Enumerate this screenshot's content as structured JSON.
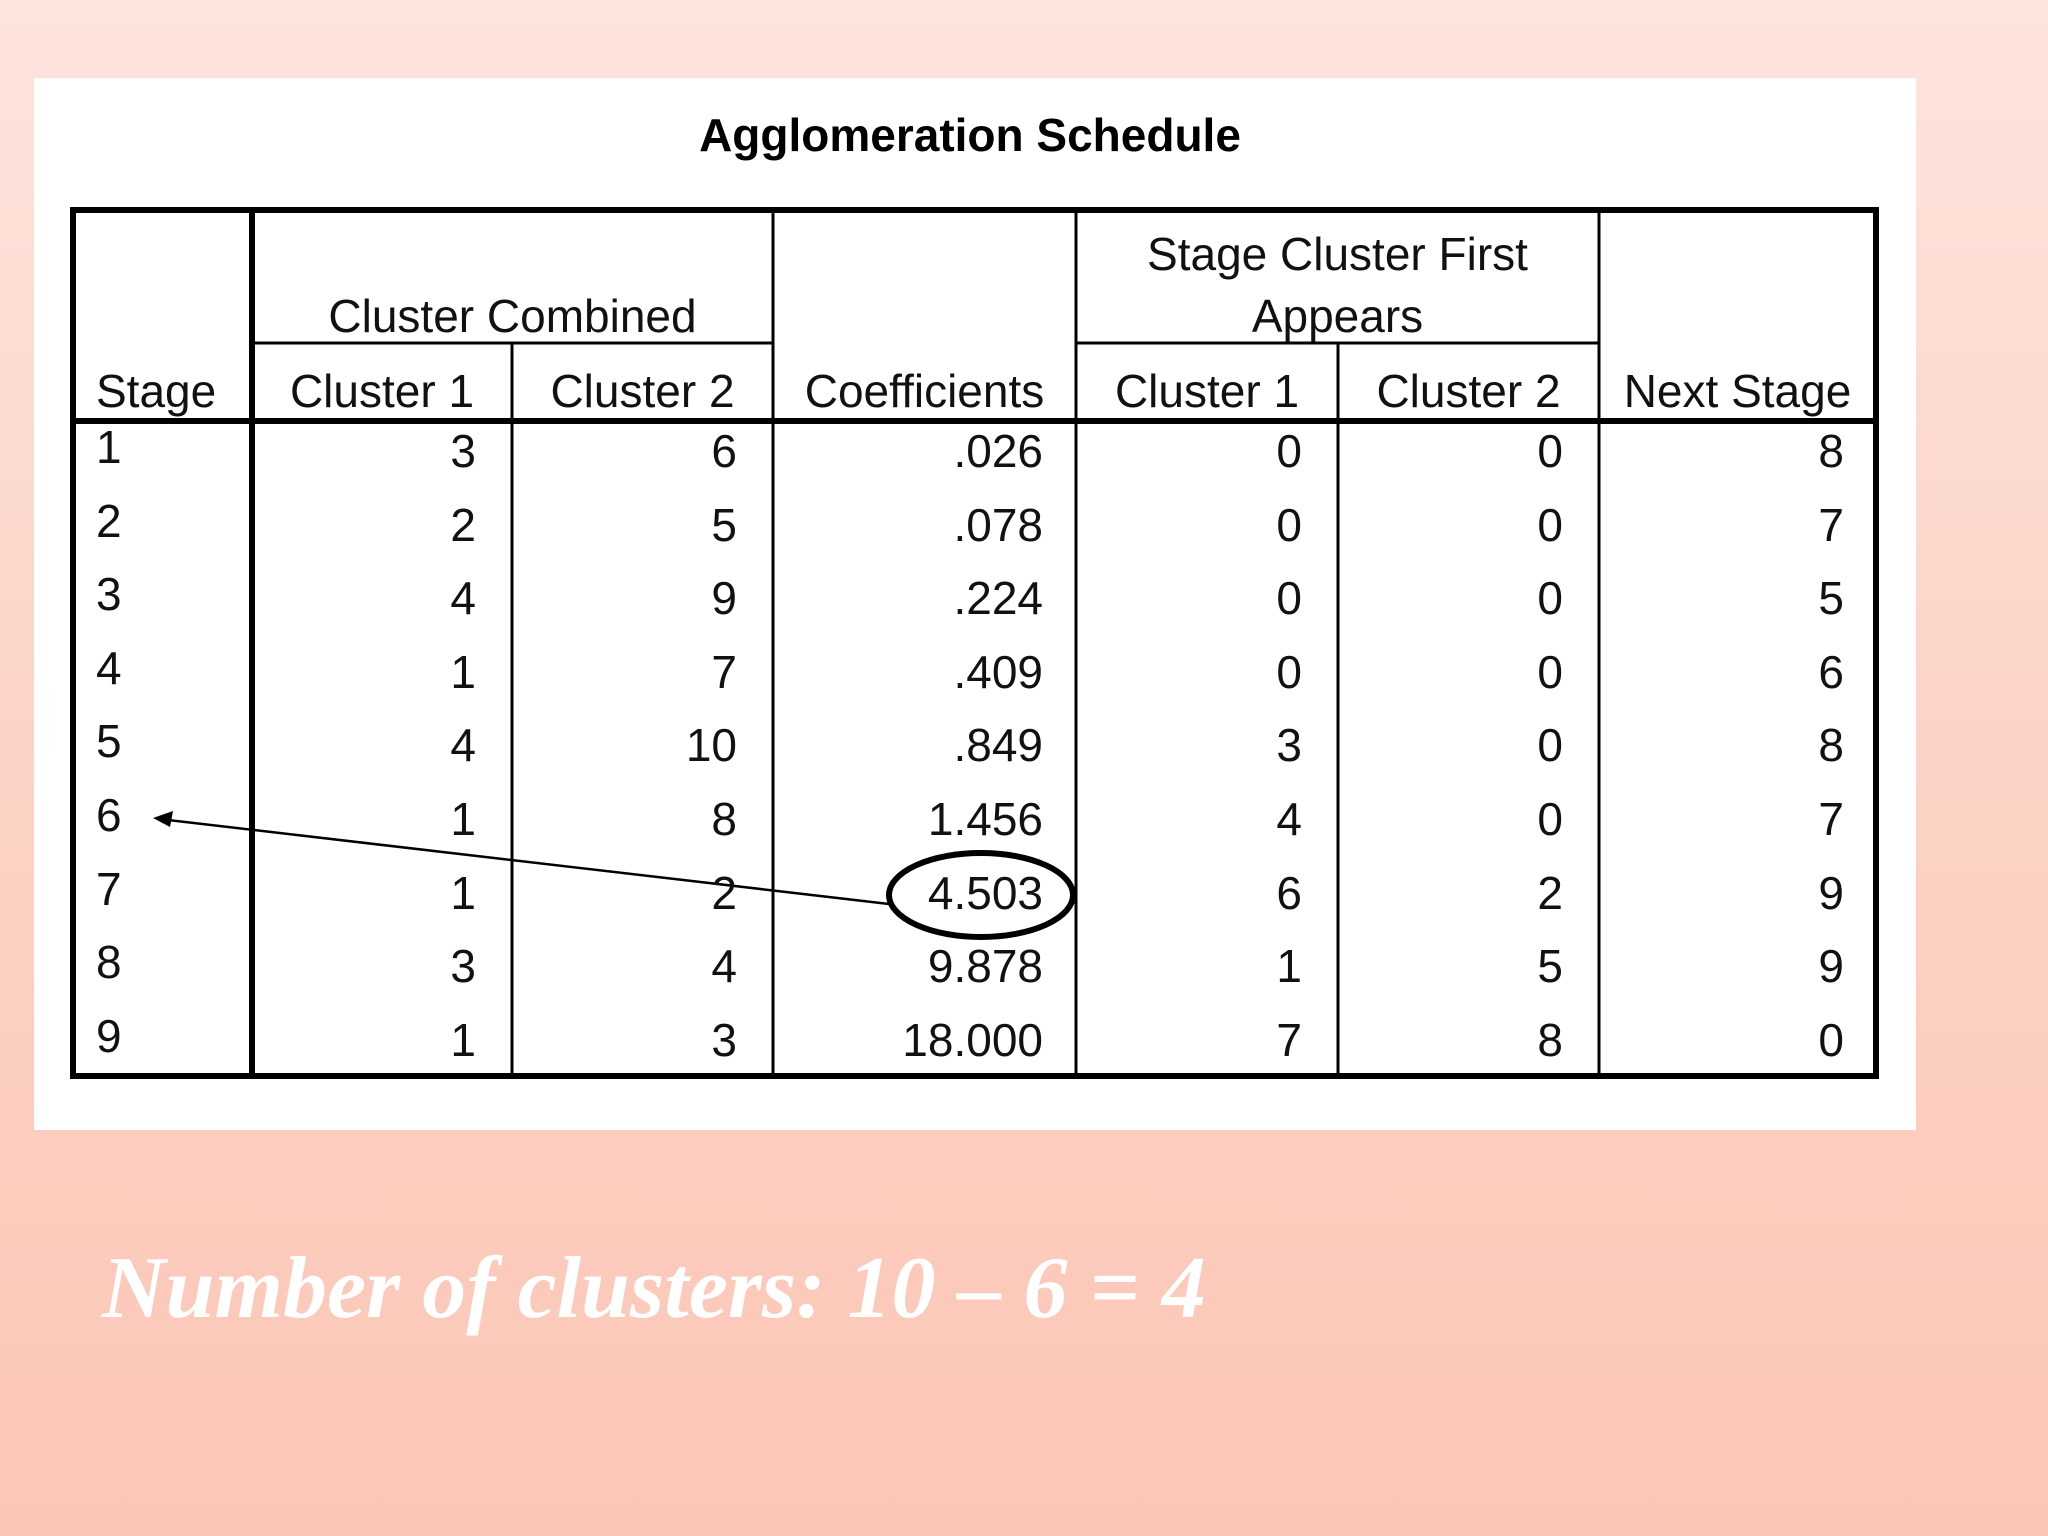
{
  "table": {
    "title": "Agglomeration Schedule",
    "headers": {
      "stage": "Stage",
      "cluster_combined": "Cluster Combined",
      "cc_cluster1": "Cluster 1",
      "cc_cluster2": "Cluster 2",
      "coefficients": "Coefficients",
      "stage_cluster_first_line1": "Stage Cluster First",
      "stage_cluster_first_line2": "Appears",
      "sc_cluster1": "Cluster 1",
      "sc_cluster2": "Cluster 2",
      "next_stage": "Next Stage"
    },
    "rows": [
      {
        "stage": "1",
        "c1": "3",
        "c2": "6",
        "coef": ".026",
        "s1": "0",
        "s2": "0",
        "next": "8"
      },
      {
        "stage": "2",
        "c1": "2",
        "c2": "5",
        "coef": ".078",
        "s1": "0",
        "s2": "0",
        "next": "7"
      },
      {
        "stage": "3",
        "c1": "4",
        "c2": "9",
        "coef": ".224",
        "s1": "0",
        "s2": "0",
        "next": "5"
      },
      {
        "stage": "4",
        "c1": "1",
        "c2": "7",
        "coef": ".409",
        "s1": "0",
        "s2": "0",
        "next": "6"
      },
      {
        "stage": "5",
        "c1": "4",
        "c2": "10",
        "coef": ".849",
        "s1": "3",
        "s2": "0",
        "next": "8"
      },
      {
        "stage": "6",
        "c1": "1",
        "c2": "8",
        "coef": "1.456",
        "s1": "4",
        "s2": "0",
        "next": "7"
      },
      {
        "stage": "7",
        "c1": "1",
        "c2": "2",
        "coef": "4.503",
        "s1": "6",
        "s2": "2",
        "next": "9"
      },
      {
        "stage": "8",
        "c1": "3",
        "c2": "4",
        "coef": "9.878",
        "s1": "1",
        "s2": "5",
        "next": "9"
      },
      {
        "stage": "9",
        "c1": "1",
        "c2": "3",
        "coef": "18.000",
        "s1": "7",
        "s2": "8",
        "next": "0"
      }
    ]
  },
  "annotation": {
    "highlighted_value": "4.503",
    "arrow_target_stage": "6"
  },
  "caption": "Number of clusters: 10 – 6 = 4",
  "colors": {
    "background_top": "#fde4dd",
    "background_bottom": "#fbc6b6",
    "caption_text": "#ffffff",
    "table_lines": "#000000"
  }
}
